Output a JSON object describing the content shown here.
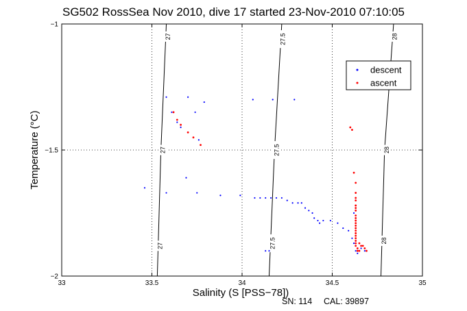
{
  "chart_data": {
    "type": "scatter",
    "title": "SG502 RossSea Nov 2010, dive 17 started 23-Nov-2010 07:10:05",
    "xlabel": "Salinity (S [PSS−78])",
    "ylabel": "Temperature (°C)",
    "xlim": [
      33,
      35
    ],
    "ylim": [
      -2,
      -1
    ],
    "xticks": [
      33,
      33.5,
      34,
      34.5,
      35
    ],
    "xtick_labels": [
      "33",
      "33.5",
      "34",
      "34.5",
      "35"
    ],
    "yticks": [
      -2,
      -1.5,
      -1
    ],
    "ytick_labels": [
      "−2",
      "−1.5",
      "−1"
    ],
    "grid": "dotted, at 33.5, 34, 34.5 (x) and −1.5 (y)",
    "legend": "upper-right",
    "contours": [
      {
        "label": "27",
        "points": [
          [
            33.53,
            -2
          ],
          [
            33.55,
            -1.5
          ],
          [
            33.58,
            -1
          ]
        ],
        "label_y": [
          -1.05,
          -1.5,
          -1.88
        ]
      },
      {
        "label": "27.5",
        "points": [
          [
            34.15,
            -2
          ],
          [
            34.18,
            -1.5
          ],
          [
            34.22,
            -1
          ]
        ],
        "label_y": [
          -1.06,
          -1.5,
          -1.87
        ]
      },
      {
        "label": "28",
        "points": [
          [
            34.77,
            -2
          ],
          [
            34.79,
            -1.5
          ],
          [
            34.84,
            -1
          ]
        ],
        "label_y": [
          -1.05,
          -1.5,
          -1.86
        ]
      }
    ],
    "series": [
      {
        "name": "descent",
        "color": "#0000ff",
        "points": [
          [
            33.46,
            -1.65
          ],
          [
            33.58,
            -1.29
          ],
          [
            33.58,
            -1.67
          ],
          [
            33.61,
            -1.35
          ],
          [
            33.64,
            -1.39
          ],
          [
            33.66,
            -1.41
          ],
          [
            33.69,
            -1.61
          ],
          [
            33.7,
            -1.29
          ],
          [
            33.74,
            -1.35
          ],
          [
            33.75,
            -1.67
          ],
          [
            33.76,
            -1.46
          ],
          [
            33.79,
            -1.31
          ],
          [
            33.88,
            -1.68
          ],
          [
            33.99,
            -1.68
          ],
          [
            34.07,
            -1.69
          ],
          [
            34.1,
            -1.69
          ],
          [
            34.13,
            -1.69
          ],
          [
            34.16,
            -1.69
          ],
          [
            34.19,
            -1.69
          ],
          [
            34.22,
            -1.69
          ],
          [
            34.25,
            -1.7
          ],
          [
            34.28,
            -1.71
          ],
          [
            34.31,
            -1.71
          ],
          [
            34.33,
            -1.71
          ],
          [
            34.35,
            -1.73
          ],
          [
            34.37,
            -1.74
          ],
          [
            34.39,
            -1.75
          ],
          [
            34.4,
            -1.77
          ],
          [
            34.42,
            -1.78
          ],
          [
            34.43,
            -1.79
          ],
          [
            34.45,
            -1.78
          ],
          [
            34.49,
            -1.78
          ],
          [
            34.53,
            -1.79
          ],
          [
            34.56,
            -1.81
          ],
          [
            34.59,
            -1.82
          ],
          [
            34.61,
            -1.85
          ],
          [
            34.62,
            -1.87
          ],
          [
            34.63,
            -1.9
          ],
          [
            34.64,
            -1.91
          ],
          [
            34.66,
            -1.89
          ],
          [
            34.68,
            -1.9
          ],
          [
            34.06,
            -1.3
          ],
          [
            34.17,
            -1.3
          ],
          [
            34.29,
            -1.3
          ],
          [
            34.13,
            -1.9
          ],
          [
            34.15,
            -1.9
          ],
          [
            34.63,
            -1.8
          ],
          [
            34.62,
            -1.75
          ]
        ]
      },
      {
        "name": "ascent",
        "color": "#ff0000",
        "points": [
          [
            33.62,
            -1.35
          ],
          [
            33.64,
            -1.38
          ],
          [
            33.66,
            -1.4
          ],
          [
            33.7,
            -1.43
          ],
          [
            33.73,
            -1.45
          ],
          [
            33.77,
            -1.48
          ],
          [
            34.6,
            -1.41
          ],
          [
            34.61,
            -1.42
          ],
          [
            34.63,
            -1.63
          ],
          [
            34.63,
            -1.67
          ],
          [
            34.63,
            -1.69
          ],
          [
            34.63,
            -1.7
          ],
          [
            34.63,
            -1.72
          ],
          [
            34.63,
            -1.73
          ],
          [
            34.63,
            -1.74
          ],
          [
            34.63,
            -1.76
          ],
          [
            34.63,
            -1.77
          ],
          [
            34.63,
            -1.78
          ],
          [
            34.63,
            -1.79
          ],
          [
            34.63,
            -1.8
          ],
          [
            34.63,
            -1.81
          ],
          [
            34.63,
            -1.82
          ],
          [
            34.63,
            -1.83
          ],
          [
            34.63,
            -1.84
          ],
          [
            34.63,
            -1.85
          ],
          [
            34.63,
            -1.86
          ],
          [
            34.63,
            -1.87
          ],
          [
            34.63,
            -1.88
          ],
          [
            34.64,
            -1.89
          ],
          [
            34.65,
            -1.9
          ],
          [
            34.66,
            -1.88
          ],
          [
            34.67,
            -1.88
          ],
          [
            34.68,
            -1.89
          ],
          [
            34.69,
            -1.9
          ],
          [
            34.62,
            -1.59
          ],
          [
            34.64,
            -1.9
          ],
          [
            34.65,
            -1.87
          ]
        ]
      }
    ]
  },
  "footer": {
    "serial": "SN: 114",
    "calibration": "CAL: 39897"
  }
}
